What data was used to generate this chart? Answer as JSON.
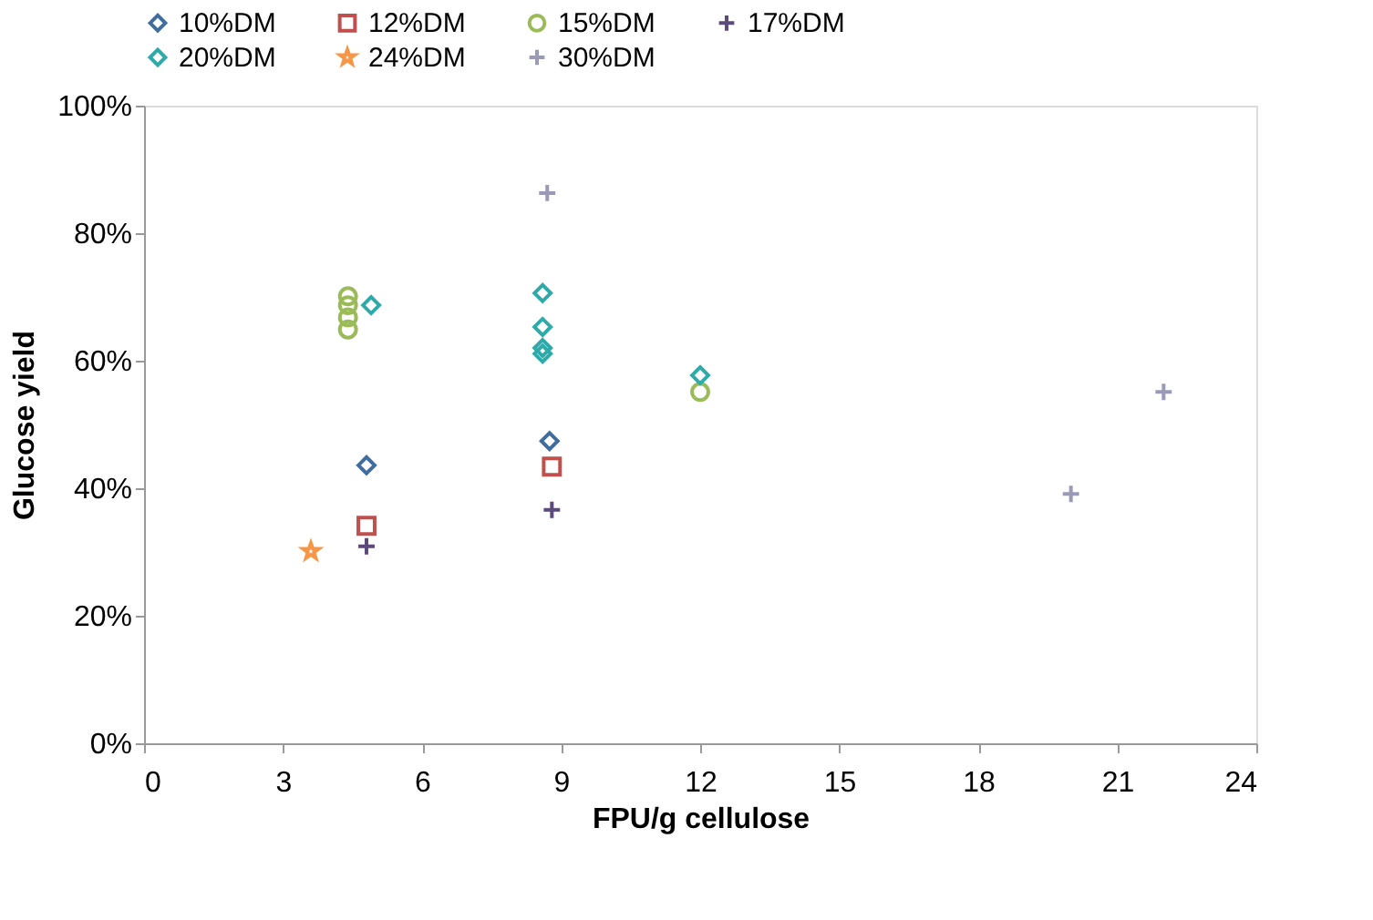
{
  "chart_data": {
    "type": "scatter",
    "xlabel": "FPU/g cellulose",
    "ylabel": "Glucose yield",
    "xlim": [
      0,
      24
    ],
    "xticks": [
      0,
      3,
      6,
      9,
      12,
      15,
      18,
      21,
      24
    ],
    "ylim": [
      0,
      100
    ],
    "yticks": [
      {
        "value": 0,
        "label": "0%"
      },
      {
        "value": 20,
        "label": "20%"
      },
      {
        "value": 40,
        "label": "40%"
      },
      {
        "value": 60,
        "label": "60%"
      },
      {
        "value": 80,
        "label": "80%"
      },
      {
        "value": 100,
        "label": "100%"
      }
    ],
    "grid": false,
    "legend": "top",
    "series": [
      {
        "name": "10%DM",
        "color": "#3f6e9e",
        "marker": "diamond",
        "x": [
          4.8,
          8.75
        ],
        "values": [
          43.6,
          47.4
        ]
      },
      {
        "name": "12%DM",
        "color": "#c0504d",
        "marker": "square",
        "x": [
          4.8,
          8.8
        ],
        "values": [
          34.1,
          43.4
        ]
      },
      {
        "name": "15%DM",
        "color": "#9bbb59",
        "marker": "circle",
        "x": [
          4.4,
          4.4,
          4.4,
          4.4,
          12.0
        ],
        "values": [
          70.1,
          68.7,
          66.8,
          64.9,
          55.1
        ]
      },
      {
        "name": "17%DM",
        "color": "#5c4a7a",
        "marker": "cross",
        "x": [
          4.8,
          8.8
        ],
        "values": [
          30.9,
          36.6
        ]
      },
      {
        "name": "20%DM",
        "color": "#2eaaa8",
        "marker": "diamond",
        "x": [
          4.9,
          8.6,
          8.6,
          8.6,
          8.6,
          12.0
        ],
        "values": [
          68.7,
          70.6,
          65.3,
          62.0,
          61.1,
          57.7
        ]
      },
      {
        "name": "24%DM",
        "color": "#f79646",
        "marker": "star",
        "x": [
          3.6
        ],
        "values": [
          30.1
        ]
      },
      {
        "name": "30%DM",
        "color": "#9a9ab8",
        "marker": "cross",
        "x": [
          8.7,
          20.0,
          22.0
        ],
        "values": [
          86.3,
          39.1,
          55.1
        ]
      }
    ]
  }
}
